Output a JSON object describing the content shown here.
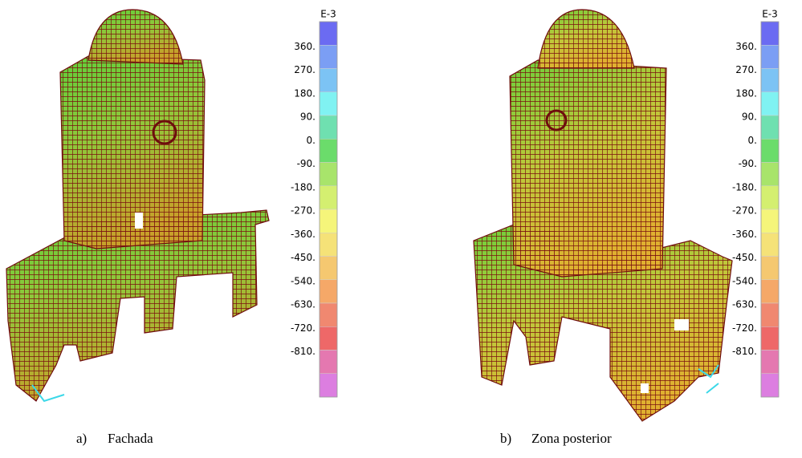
{
  "figure_a": {
    "legend": {
      "unit": "E-3",
      "labels": [
        "360.",
        "270.",
        "180.",
        "90.",
        "0.",
        "-90.",
        "-180.",
        "-270.",
        "-360.",
        "-450.",
        "-540.",
        "-630.",
        "-720.",
        "-810."
      ]
    },
    "caption": {
      "letter": "a)",
      "text": "Fachada"
    }
  },
  "figure_b": {
    "legend": {
      "unit": "E-3",
      "labels": [
        "360.",
        "270.",
        "180.",
        "90.",
        "0.",
        "-90.",
        "-180.",
        "-270.",
        "-360.",
        "-450.",
        "-540.",
        "-630.",
        "-720.",
        "-810."
      ]
    },
    "caption": {
      "letter": "b)",
      "text": "Zona posterior"
    }
  }
}
